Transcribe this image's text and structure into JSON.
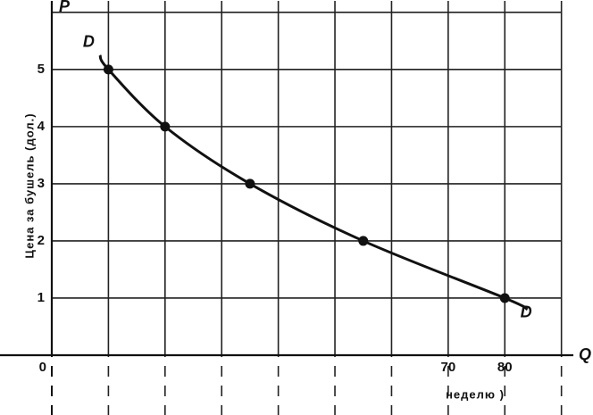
{
  "chart_data": {
    "type": "line",
    "y_axis_letter": "P",
    "x_axis_letter": "Q",
    "curve_label": "D",
    "ylabel": "Цена за бушель (дол.)",
    "xlabel": "неделю )",
    "curve": {
      "x": [
        8.5,
        10,
        20,
        35,
        55,
        80,
        84
      ],
      "values": [
        5.25,
        5,
        4,
        3,
        2,
        1,
        0.8
      ]
    },
    "points": {
      "x": [
        10,
        20,
        35,
        55,
        80
      ],
      "values": [
        5,
        4,
        3,
        2,
        1
      ]
    },
    "color": "#111",
    "xlim": [
      0,
      91
    ],
    "ylim": [
      0,
      6.2
    ],
    "xticks": [
      0,
      70,
      80
    ],
    "yticks": [
      1,
      2,
      3,
      4,
      5
    ],
    "xgrid": [
      10,
      20,
      30,
      40,
      50,
      60,
      70,
      80,
      90
    ],
    "ygrid": [
      1,
      2,
      3,
      4,
      5,
      6
    ]
  }
}
